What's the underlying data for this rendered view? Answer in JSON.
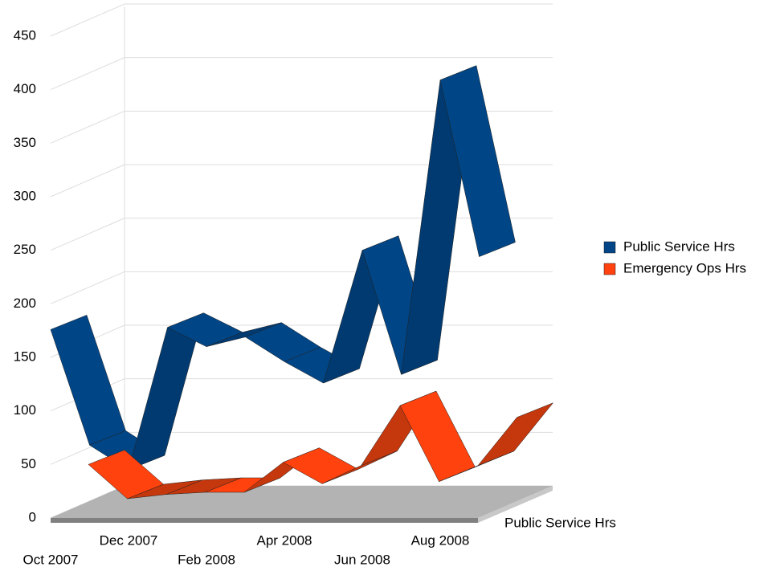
{
  "chart_data": {
    "type": "line3d",
    "categories": [
      "Oct 2007",
      null,
      "Dec 2007",
      null,
      "Feb 2008",
      null,
      "Apr 2008",
      null,
      "Jun 2008",
      null,
      "Aug 2008",
      null
    ],
    "series": [
      {
        "name": "Public Service Hrs",
        "color": "#004586",
        "shade_color": "#003a70",
        "values": [
          176,
          68,
          45,
          178,
          160,
          169,
          146,
          126,
          250,
          134,
          409,
          244
        ]
      },
      {
        "name": "Emergency Ops Hrs",
        "color": "#ff420e",
        "shade_color": "#c5370c",
        "values": [
          35,
          3,
          7,
          9,
          9,
          37,
          17,
          34,
          90,
          19,
          34,
          79
        ]
      }
    ],
    "series_axis_labels": [
      "Public Service Hrs"
    ],
    "ylim": [
      0,
      450
    ],
    "yticks": [
      0,
      50,
      100,
      150,
      200,
      250,
      300,
      350,
      400,
      450
    ],
    "grid": true,
    "legend": "right"
  }
}
